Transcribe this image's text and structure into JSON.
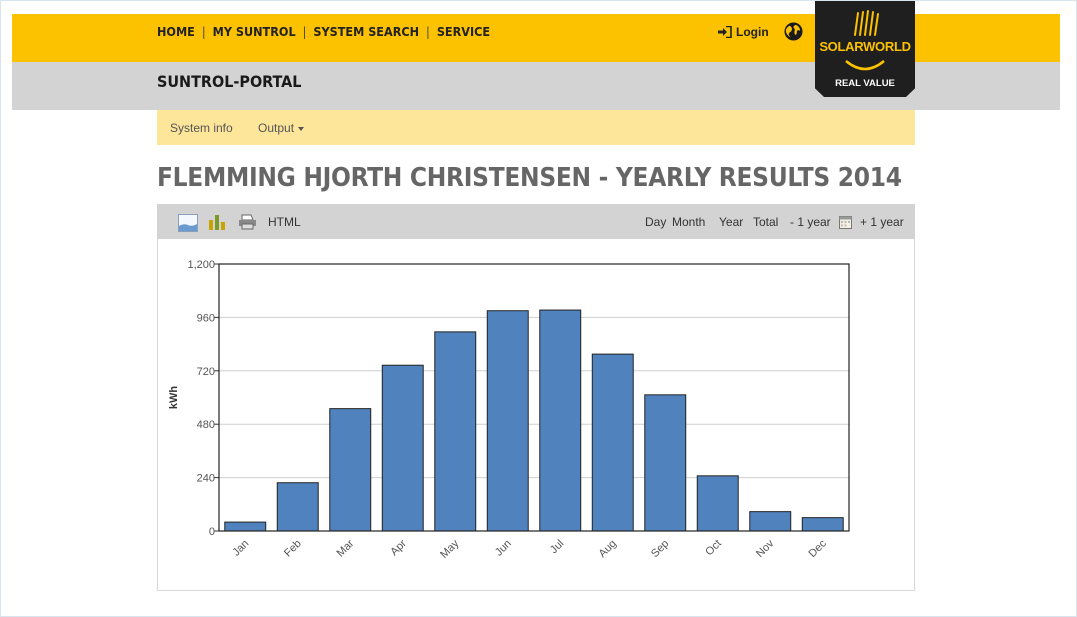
{
  "nav": {
    "items": [
      "HOME",
      "MY SUNTROL",
      "SYSTEM SEARCH",
      "SERVICE"
    ],
    "login": "Login"
  },
  "header": {
    "portal_title": "SUNTROL-PORTAL"
  },
  "logo": {
    "brand": "SOLARWORLD",
    "tagline": "REAL VALUE"
  },
  "subnav": {
    "system_info": "System info",
    "output": "Output"
  },
  "page": {
    "title": "FLEMMING HJORTH CHRISTENSEN - YEARLY RESULTS 2014"
  },
  "toolbar": {
    "html": "HTML",
    "day": "Day",
    "month": "Month",
    "year": "Year",
    "total": "Total",
    "prev_year": "- 1 year",
    "next_year": "+ 1 year"
  },
  "icons": {
    "area_chart": "area-chart-icon",
    "bar_chart": "bar-chart-icon",
    "print": "print-icon",
    "calendar": "calendar-icon",
    "login": "login-arrow-icon",
    "globe": "globe-icon"
  },
  "colors": {
    "accent": "#fcc200",
    "bar": "#5082be",
    "subnav": "#fde59a",
    "toolbar": "#d3d3d3"
  },
  "chart_data": {
    "type": "bar",
    "categories": [
      "Jan",
      "Feb",
      "Mar",
      "Apr",
      "May",
      "Jun",
      "Jul",
      "Aug",
      "Sep",
      "Oct",
      "Nov",
      "Dec"
    ],
    "values": [
      40,
      217,
      550,
      745,
      895,
      990,
      993,
      795,
      612,
      248,
      87,
      60
    ],
    "ylabel": "kWh",
    "ylim": [
      0,
      1200
    ],
    "yticks": [
      "0",
      "240",
      "480",
      "720",
      "960",
      "1,200"
    ],
    "grid": true,
    "legend": "none"
  }
}
